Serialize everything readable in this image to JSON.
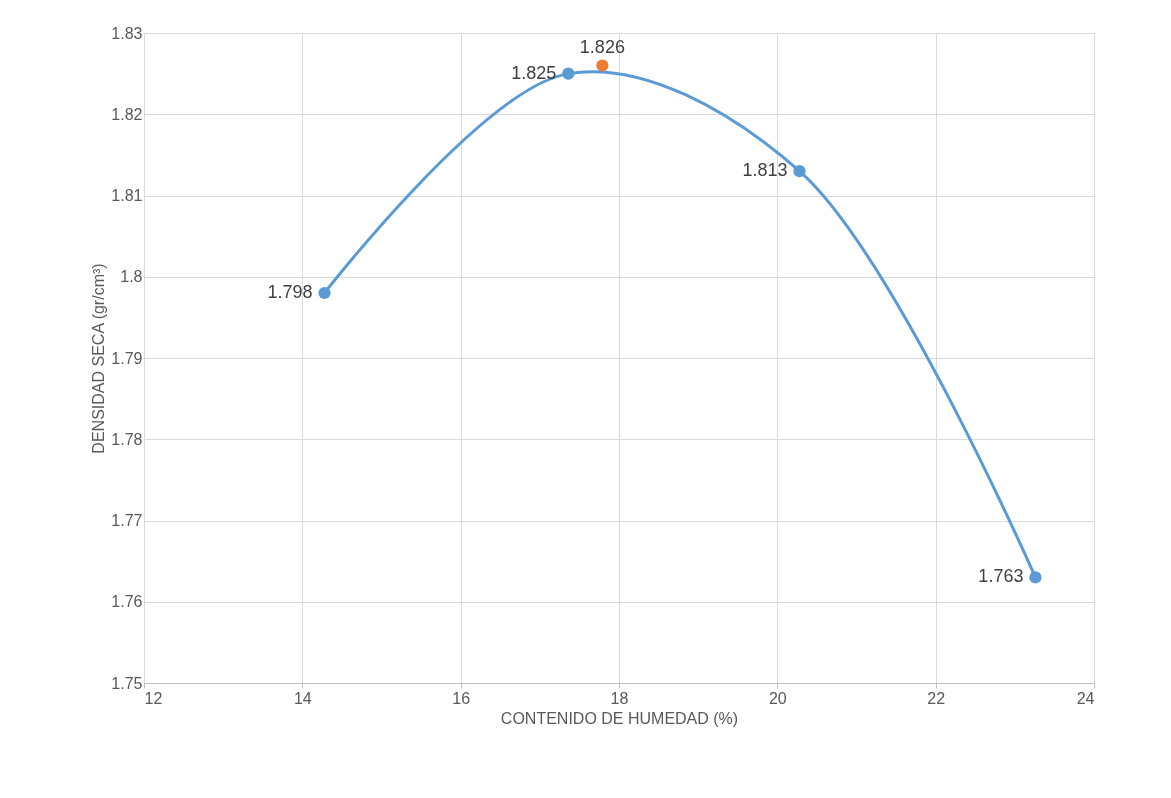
{
  "chart_data": {
    "type": "line",
    "xlabel": "CONTENIDO DE HUMEDAD (%)",
    "ylabel": "DENSIDAD SECA (gr/cm³)",
    "xlim": [
      12,
      24
    ],
    "xticks": [
      12,
      14,
      16,
      18,
      20,
      22,
      24
    ],
    "ylim": [
      1.75,
      1.83
    ],
    "yticks": [
      1.75,
      1.76,
      1.77,
      1.78,
      1.79,
      1.8,
      1.81,
      1.82,
      1.83
    ],
    "grid": true,
    "marker": "circle",
    "data_labels": true,
    "series": [
      {
        "color": "#5b9bd5",
        "x": [
          14.28,
          17.36,
          20.28,
          23.26
        ],
        "values": [
          1.798,
          1.825,
          1.813,
          1.763
        ]
      },
      {
        "type": "scatter",
        "color": "#ed7d31",
        "x": [
          17.79
        ],
        "values": [
          1.826
        ]
      }
    ]
  }
}
